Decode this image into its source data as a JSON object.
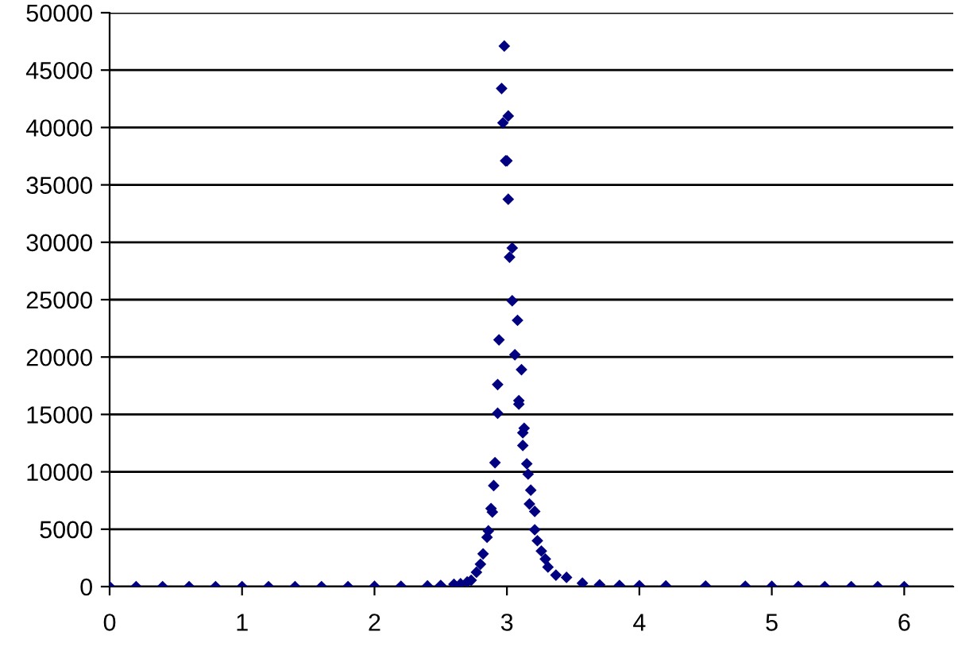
{
  "chart_data": {
    "type": "scatter",
    "marker": "diamond",
    "grid": "y",
    "xlim": [
      0,
      6.37
    ],
    "xticks": [
      0,
      1,
      2,
      3,
      4,
      5,
      6
    ],
    "ylim": [
      0,
      50000
    ],
    "yticks": [
      0,
      5000,
      10000,
      15000,
      20000,
      25000,
      30000,
      35000,
      40000,
      45000,
      50000
    ],
    "series": [
      {
        "color": "#000080",
        "x": [
          0,
          0.2,
          0.4,
          0.6,
          0.8,
          1.0,
          1.2,
          1.4,
          1.6,
          1.8,
          2.0,
          2.2,
          2.4,
          2.5,
          2.6,
          2.65,
          2.7,
          2.73,
          2.77,
          2.8,
          2.82,
          2.85,
          2.86,
          2.88,
          2.89,
          2.9,
          2.91,
          2.93,
          2.93,
          2.94,
          2.96,
          2.97,
          2.98,
          2.99,
          3.0,
          3.01,
          3.01,
          3.02,
          3.04,
          3.04,
          3.06,
          3.08,
          3.09,
          3.09,
          3.11,
          3.12,
          3.12,
          3.13,
          3.15,
          3.16,
          3.17,
          3.18,
          3.21,
          3.21,
          3.23,
          3.26,
          3.29,
          3.31,
          3.37,
          3.45,
          3.57,
          3.7,
          3.85,
          4.0,
          4.2,
          4.5,
          4.8,
          5.0,
          5.2,
          5.4,
          5.6,
          5.8,
          6.0
        ],
        "values": [
          0,
          0,
          0,
          0,
          0,
          0,
          0,
          0,
          0,
          0,
          20,
          30,
          60,
          100,
          200,
          250,
          400,
          550,
          1250,
          1950,
          2850,
          4300,
          4850,
          6800,
          6500,
          8800,
          10800,
          15100,
          17600,
          21500,
          43400,
          40400,
          47100,
          37100,
          37100,
          41000,
          33750,
          28700,
          29500,
          24900,
          20200,
          23200,
          16200,
          15900,
          18900,
          13400,
          12300,
          13800,
          10700,
          9800,
          7200,
          8400,
          6550,
          4950,
          4000,
          3100,
          2400,
          1700,
          1000,
          800,
          300,
          150,
          100,
          80,
          60,
          50,
          30,
          20,
          10,
          0,
          0,
          0,
          0
        ]
      }
    ]
  }
}
